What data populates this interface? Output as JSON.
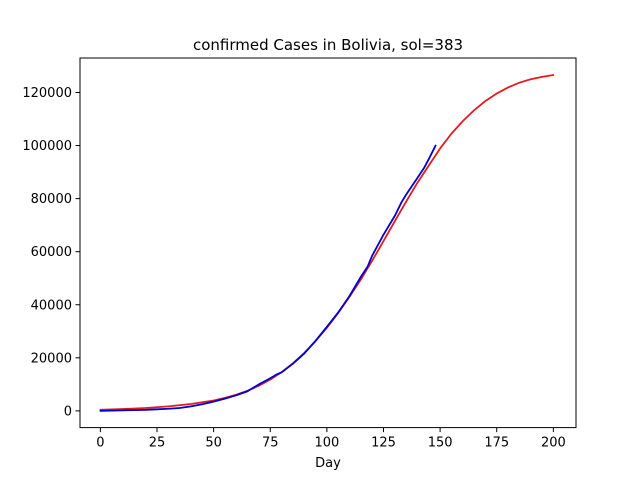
{
  "chart_data": {
    "type": "line",
    "title": "confirmed Cases in Bolivia, sol=383",
    "xlabel": "Day",
    "ylabel": "",
    "xlim": [
      -9,
      210
    ],
    "ylim": [
      -6300,
      133000
    ],
    "grid": false,
    "x_ticks": [
      0,
      25,
      50,
      75,
      100,
      125,
      150,
      175,
      200
    ],
    "x_tick_labels": [
      "0",
      "25",
      "50",
      "75",
      "100",
      "125",
      "150",
      "175",
      "200"
    ],
    "y_ticks": [
      0,
      20000,
      40000,
      60000,
      80000,
      100000,
      120000
    ],
    "y_tick_labels": [
      "0",
      "20000",
      "40000",
      "60000",
      "80000",
      "100000",
      "120000"
    ],
    "series": [
      {
        "color": "#e41a1c",
        "style": "model-fit",
        "x": [
          0,
          10,
          20,
          30,
          40,
          50,
          55,
          60,
          65,
          70,
          75,
          80,
          85,
          90,
          95,
          100,
          105,
          110,
          115,
          120,
          125,
          130,
          135,
          140,
          145,
          150,
          155,
          160,
          165,
          170,
          175,
          180,
          185,
          190,
          195,
          200
        ],
        "y": [
          400,
          700,
          1100,
          1700,
          2600,
          3900,
          4900,
          6100,
          7600,
          9500,
          11800,
          14600,
          17900,
          21800,
          26300,
          31300,
          36900,
          43000,
          49500,
          56600,
          64000,
          71500,
          78900,
          86000,
          92500,
          98900,
          104500,
          109200,
          113300,
          116800,
          119600,
          121900,
          123700,
          125000,
          125900,
          126600
        ]
      },
      {
        "color": "#0000cd",
        "style": "observed",
        "x": [
          0,
          5,
          10,
          15,
          20,
          25,
          30,
          35,
          40,
          45,
          50,
          55,
          60,
          65,
          68,
          70,
          75,
          78,
          80,
          85,
          90,
          95,
          100,
          105,
          110,
          115,
          118,
          120,
          125,
          130,
          133,
          135,
          140,
          143,
          145,
          148
        ],
        "y": [
          0,
          100,
          200,
          300,
          400,
          600,
          800,
          1100,
          1700,
          2500,
          3500,
          4600,
          5900,
          7400,
          9000,
          10000,
          12300,
          13800,
          14500,
          17800,
          21600,
          26400,
          31700,
          37100,
          43300,
          50500,
          54400,
          58500,
          66400,
          73500,
          78700,
          81500,
          87800,
          91700,
          94900,
          100000
        ]
      }
    ]
  }
}
